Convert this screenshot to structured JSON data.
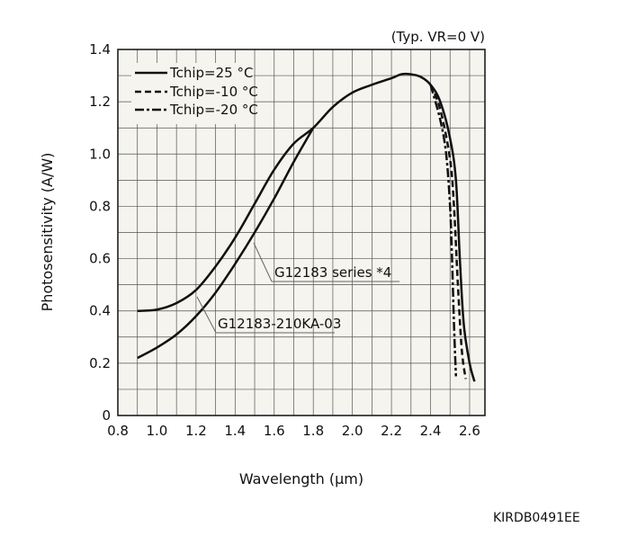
{
  "chart_data": {
    "type": "line",
    "condition": "(Typ. VR=0 V)",
    "xlabel": "Wavelength (µm)",
    "ylabel": "Photosensitivity (A/W)",
    "xlim": [
      0.8,
      2.68
    ],
    "ylim": [
      0,
      1.4
    ],
    "xticks": [
      "0.8",
      "1.0",
      "1.2",
      "1.4",
      "1.6",
      "1.8",
      "2.0",
      "2.2",
      "2.4",
      "2.6"
    ],
    "yticks": [
      "0",
      "0.2",
      "0.4",
      "0.6",
      "0.8",
      "1.0",
      "1.2",
      "1.4"
    ],
    "grid": true,
    "legend_position": "top-left",
    "legend": [
      "Tchip=25 °C",
      "Tchip=-10 °C",
      "Tchip=-20 °C"
    ],
    "annotations": [
      "G12183 series *4",
      "G12183-210KA-03"
    ],
    "series": [
      {
        "name": "G12183 series, Tchip=25 °C",
        "style": "solid",
        "x": [
          0.9,
          1.0,
          1.1,
          1.2,
          1.3,
          1.4,
          1.5,
          1.6,
          1.7,
          1.8,
          1.9,
          2.0,
          2.1,
          2.2,
          2.25,
          2.3,
          2.35,
          2.4,
          2.45,
          2.5,
          2.53,
          2.55,
          2.57,
          2.6,
          2.625
        ],
        "y": [
          0.4,
          0.405,
          0.43,
          0.48,
          0.57,
          0.68,
          0.81,
          0.94,
          1.04,
          1.1,
          1.18,
          1.235,
          1.265,
          1.29,
          1.305,
          1.305,
          1.295,
          1.265,
          1.2,
          1.06,
          0.9,
          0.6,
          0.35,
          0.2,
          0.13
        ]
      },
      {
        "name": "G12183-210KA-03, Tchip=25 °C",
        "style": "solid",
        "x": [
          0.9,
          1.0,
          1.1,
          1.2,
          1.3,
          1.4,
          1.5,
          1.6,
          1.7,
          1.8
        ],
        "y": [
          0.22,
          0.26,
          0.31,
          0.38,
          0.47,
          0.58,
          0.7,
          0.83,
          0.97,
          1.1
        ]
      },
      {
        "name": "Tchip=-10 °C",
        "style": "dashed",
        "x": [
          2.4,
          2.45,
          2.5,
          2.52,
          2.54,
          2.56,
          2.58
        ],
        "y": [
          1.265,
          1.17,
          0.98,
          0.8,
          0.5,
          0.25,
          0.14
        ]
      },
      {
        "name": "Tchip=-20 °C",
        "style": "dashdot",
        "x": [
          2.4,
          2.45,
          2.48,
          2.5,
          2.51,
          2.52,
          2.53
        ],
        "y": [
          1.265,
          1.13,
          1.0,
          0.8,
          0.6,
          0.35,
          0.15
        ]
      }
    ]
  },
  "figure_code": "KIRDB0491EE"
}
